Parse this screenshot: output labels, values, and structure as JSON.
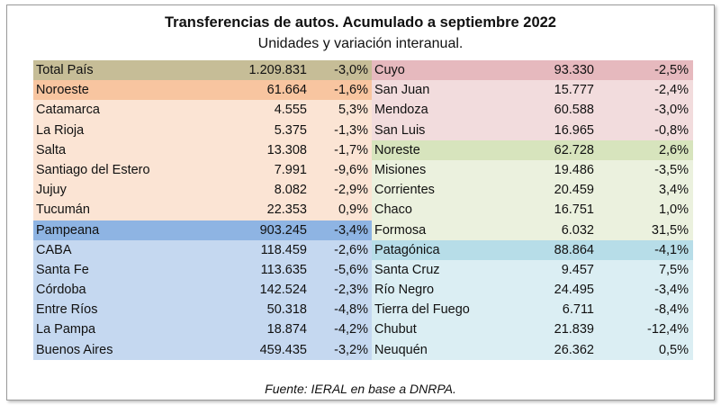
{
  "title": "Transferencias de autos. Acumulado a septiembre 2022",
  "subtitle": "Unidades y variación interanual.",
  "source": "Fuente: IERAL en base a DNRPA.",
  "colors": {
    "total_header": "#c6bd97",
    "noroeste_header": "#f8c5a0",
    "noroeste_body": "#fbe4d4",
    "pampeana_header": "#8eb4e3",
    "pampeana_body": "#c5d8f0",
    "cuyo_header": "#e6b9be",
    "cuyo_body": "#f2dcdd",
    "noreste_header": "#d7e4bd",
    "noreste_body": "#ebf1de",
    "patagonica_header": "#b7dde8",
    "patagonica_body": "#dbeef3"
  },
  "left_column": [
    {
      "name": "Total País",
      "value": "1.209.831",
      "pct": "-3,0%",
      "style": "total_header"
    },
    {
      "name": "Noroeste",
      "value": "61.664",
      "pct": "-1,6%",
      "style": "noroeste_header"
    },
    {
      "name": "Catamarca",
      "value": "4.555",
      "pct": "5,3%",
      "style": "noroeste_body"
    },
    {
      "name": "La Rioja",
      "value": "5.375",
      "pct": "-1,3%",
      "style": "noroeste_body"
    },
    {
      "name": "Salta",
      "value": "13.308",
      "pct": "-1,7%",
      "style": "noroeste_body"
    },
    {
      "name": "Santiago del Estero",
      "value": "7.991",
      "pct": "-9,6%",
      "style": "noroeste_body"
    },
    {
      "name": "Jujuy",
      "value": "8.082",
      "pct": "-2,9%",
      "style": "noroeste_body"
    },
    {
      "name": "Tucumán",
      "value": "22.353",
      "pct": "0,9%",
      "style": "noroeste_body"
    },
    {
      "name": "Pampeana",
      "value": "903.245",
      "pct": "-3,4%",
      "style": "pampeana_header"
    },
    {
      "name": "CABA",
      "value": "118.459",
      "pct": "-2,6%",
      "style": "pampeana_body"
    },
    {
      "name": "Santa Fe",
      "value": "113.635",
      "pct": "-5,6%",
      "style": "pampeana_body"
    },
    {
      "name": "Córdoba",
      "value": "142.524",
      "pct": "-2,3%",
      "style": "pampeana_body"
    },
    {
      "name": "Entre Ríos",
      "value": "50.318",
      "pct": "-4,8%",
      "style": "pampeana_body"
    },
    {
      "name": "La Pampa",
      "value": "18.874",
      "pct": "-4,2%",
      "style": "pampeana_body"
    },
    {
      "name": "Buenos Aires",
      "value": "459.435",
      "pct": "-3,2%",
      "style": "pampeana_body"
    }
  ],
  "right_column": [
    {
      "name": "Cuyo",
      "value": "93.330",
      "pct": "-2,5%",
      "style": "cuyo_header"
    },
    {
      "name": "San Juan",
      "value": "15.777",
      "pct": "-2,4%",
      "style": "cuyo_body"
    },
    {
      "name": "Mendoza",
      "value": "60.588",
      "pct": "-3,0%",
      "style": "cuyo_body"
    },
    {
      "name": "San Luis",
      "value": "16.965",
      "pct": "-0,8%",
      "style": "cuyo_body"
    },
    {
      "name": "Noreste",
      "value": "62.728",
      "pct": "2,6%",
      "style": "noreste_header"
    },
    {
      "name": "Misiones",
      "value": "19.486",
      "pct": "-3,5%",
      "style": "noreste_body"
    },
    {
      "name": "Corrientes",
      "value": "20.459",
      "pct": "3,4%",
      "style": "noreste_body"
    },
    {
      "name": "Chaco",
      "value": "16.751",
      "pct": "1,0%",
      "style": "noreste_body"
    },
    {
      "name": "Formosa",
      "value": "6.032",
      "pct": "31,5%",
      "style": "noreste_body"
    },
    {
      "name": "Patagónica",
      "value": "88.864",
      "pct": "-4,1%",
      "style": "patagonica_header"
    },
    {
      "name": "Santa Cruz",
      "value": "9.457",
      "pct": "7,5%",
      "style": "patagonica_body"
    },
    {
      "name": "Río Negro",
      "value": "24.495",
      "pct": "-3,4%",
      "style": "patagonica_body"
    },
    {
      "name": "Tierra del Fuego",
      "value": "6.711",
      "pct": "-8,4%",
      "style": "patagonica_body"
    },
    {
      "name": "Chubut",
      "value": "21.839",
      "pct": "-12,4%",
      "style": "patagonica_body"
    },
    {
      "name": "Neuquén",
      "value": "26.362",
      "pct": "0,5%",
      "style": "patagonica_body"
    }
  ]
}
